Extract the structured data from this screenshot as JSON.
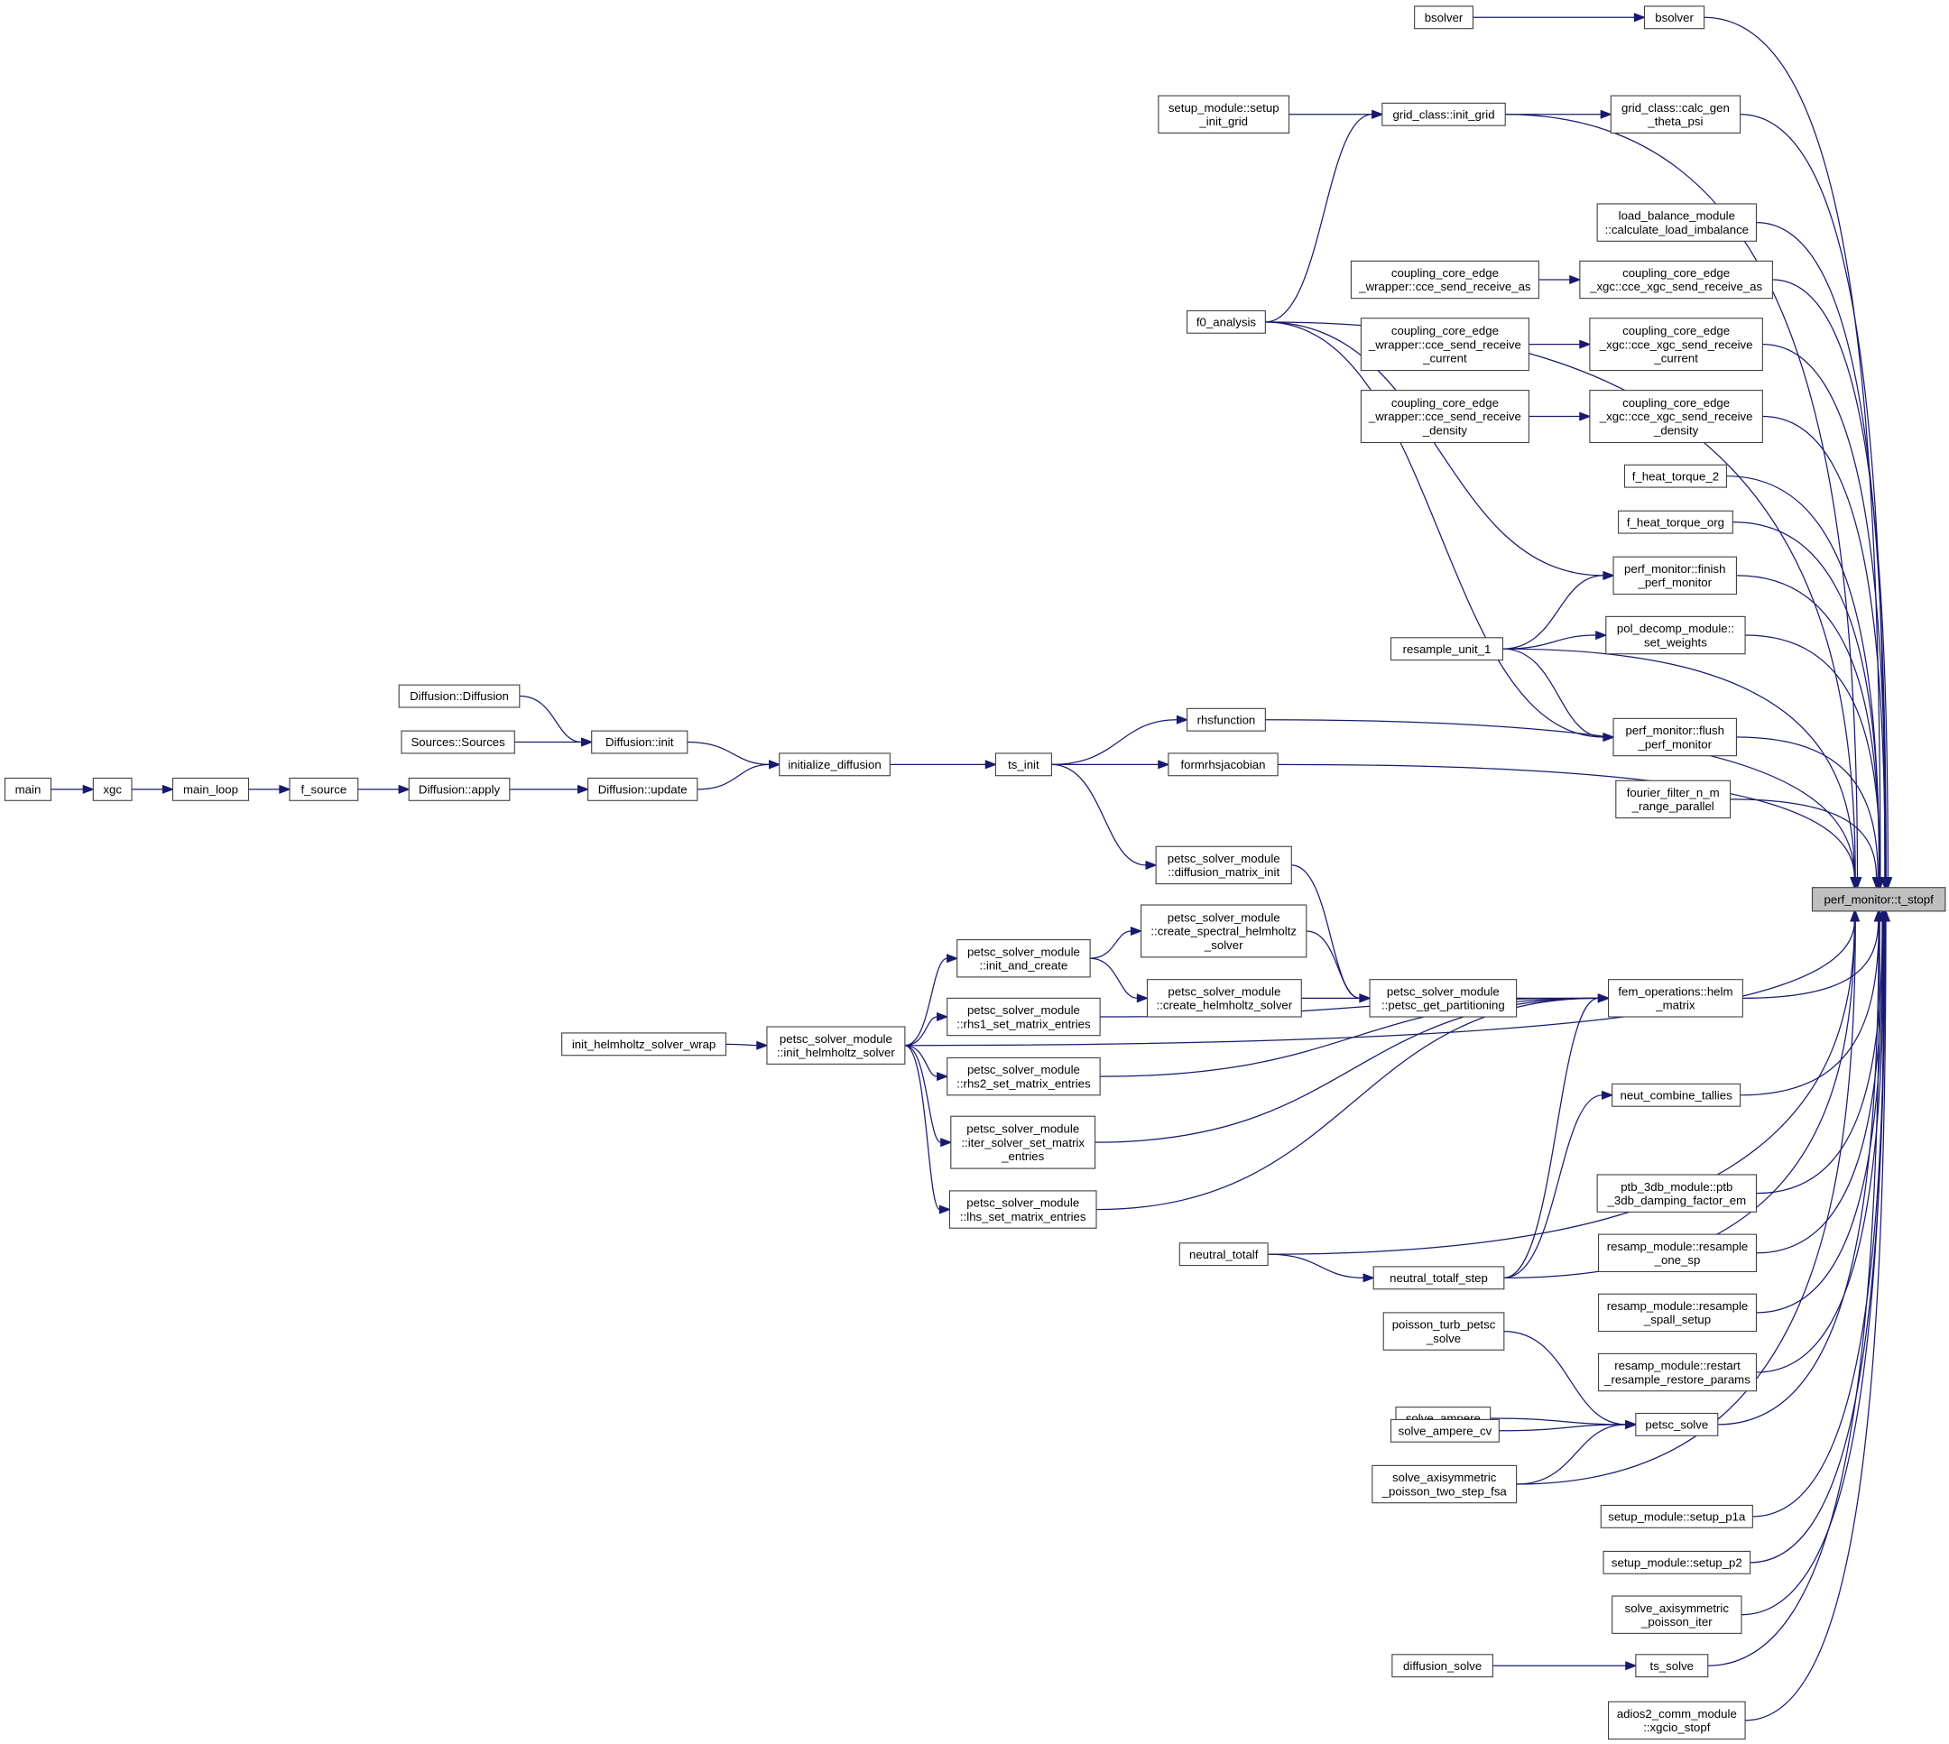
{
  "graph": {
    "edge_color": "#191970",
    "node_border_color": "#404040",
    "highlight_fill": "#bfbfbf",
    "nodes": [
      {
        "id": "bsolverL",
        "lines": [
          "bsolver"
        ]
      },
      {
        "id": "bsolverR",
        "lines": [
          "bsolver"
        ]
      },
      {
        "id": "setup_init_grid",
        "lines": [
          "setup_module::setup",
          "_init_grid"
        ]
      },
      {
        "id": "init_grid",
        "lines": [
          "grid_class::init_grid"
        ]
      },
      {
        "id": "calc_gen",
        "lines": [
          "grid_class::calc_gen",
          "_theta_psi"
        ]
      },
      {
        "id": "load_bal",
        "lines": [
          "load_balance_module",
          "::calculate_load_imbalance"
        ]
      },
      {
        "id": "wr_as",
        "lines": [
          "coupling_core_edge",
          "_wrapper::cce_send_receive_as"
        ]
      },
      {
        "id": "xgc_as",
        "lines": [
          "coupling_core_edge",
          "_xgc::cce_xgc_send_receive_as"
        ]
      },
      {
        "id": "f0",
        "lines": [
          "f0_analysis"
        ]
      },
      {
        "id": "wr_cur",
        "lines": [
          "coupling_core_edge",
          "_wrapper::cce_send_receive",
          "_current"
        ]
      },
      {
        "id": "xgc_cur",
        "lines": [
          "coupling_core_edge",
          "_xgc::cce_xgc_send_receive",
          "_current"
        ]
      },
      {
        "id": "wr_den",
        "lines": [
          "coupling_core_edge",
          "_wrapper::cce_send_receive",
          "_density"
        ]
      },
      {
        "id": "xgc_den",
        "lines": [
          "coupling_core_edge",
          "_xgc::cce_xgc_send_receive",
          "_density"
        ]
      },
      {
        "id": "fht2",
        "lines": [
          "f_heat_torque_2"
        ]
      },
      {
        "id": "fhto",
        "lines": [
          "f_heat_torque_org"
        ]
      },
      {
        "id": "finish",
        "lines": [
          "perf_monitor::finish",
          "_perf_monitor"
        ]
      },
      {
        "id": "setw",
        "lines": [
          "pol_decomp_module::",
          "set_weights"
        ]
      },
      {
        "id": "resamp1",
        "lines": [
          "resample_unit_1"
        ]
      },
      {
        "id": "diffdiff",
        "lines": [
          "Diffusion::Diffusion"
        ]
      },
      {
        "id": "rhsf",
        "lines": [
          "rhsfunction"
        ]
      },
      {
        "id": "sources",
        "lines": [
          "Sources::Sources"
        ]
      },
      {
        "id": "diffinit",
        "lines": [
          "Diffusion::init"
        ]
      },
      {
        "id": "flush",
        "lines": [
          "perf_monitor::flush",
          "_perf_monitor"
        ]
      },
      {
        "id": "initdiff",
        "lines": [
          "initialize_diffusion"
        ]
      },
      {
        "id": "tsinit",
        "lines": [
          "ts_init"
        ]
      },
      {
        "id": "formrhs",
        "lines": [
          "formrhsjacobian"
        ]
      },
      {
        "id": "fourier",
        "lines": [
          "fourier_filter_n_m",
          "_range_parallel"
        ]
      },
      {
        "id": "main",
        "lines": [
          "main"
        ]
      },
      {
        "id": "xgc",
        "lines": [
          "xgc"
        ]
      },
      {
        "id": "mainloop",
        "lines": [
          "main_loop"
        ]
      },
      {
        "id": "fsource",
        "lines": [
          "f_source"
        ]
      },
      {
        "id": "diffapply",
        "lines": [
          "Diffusion::apply"
        ]
      },
      {
        "id": "diffupdate",
        "lines": [
          "Diffusion::update"
        ]
      },
      {
        "id": "dmi",
        "lines": [
          "petsc_solver_module",
          "::diffusion_matrix_init"
        ]
      },
      {
        "id": "tstopf",
        "lines": [
          "perf_monitor::t_stopf"
        ],
        "highlighted": true
      },
      {
        "id": "spectral",
        "lines": [
          "petsc_solver_module",
          "::create_spectral_helmholtz",
          "_solver"
        ]
      },
      {
        "id": "initcreate",
        "lines": [
          "petsc_solver_module",
          "::init_and_create"
        ]
      },
      {
        "id": "createhelm",
        "lines": [
          "petsc_solver_module",
          "::create_helmholtz_solver"
        ]
      },
      {
        "id": "getpart",
        "lines": [
          "petsc_solver_module",
          "::petsc_get_partitioning"
        ]
      },
      {
        "id": "helm",
        "lines": [
          "fem_operations::helm",
          "_matrix"
        ]
      },
      {
        "id": "rhs1",
        "lines": [
          "petsc_solver_module",
          "::rhs1_set_matrix_entries"
        ]
      },
      {
        "id": "wrap",
        "lines": [
          "init_helmholtz_solver_wrap"
        ]
      },
      {
        "id": "inithelm",
        "lines": [
          "petsc_solver_module",
          "::init_helmholtz_solver"
        ]
      },
      {
        "id": "rhs2",
        "lines": [
          "petsc_solver_module",
          "::rhs2_set_matrix_entries"
        ]
      },
      {
        "id": "neutcomb",
        "lines": [
          "neut_combine_tallies"
        ]
      },
      {
        "id": "iter",
        "lines": [
          "petsc_solver_module",
          "::iter_solver_set_matrix",
          "_entries"
        ]
      },
      {
        "id": "ptb",
        "lines": [
          "ptb_3db_module::ptb",
          "_3db_damping_factor_em"
        ]
      },
      {
        "id": "lhs",
        "lines": [
          "petsc_solver_module",
          "::lhs_set_matrix_entries"
        ]
      },
      {
        "id": "onesp",
        "lines": [
          "resamp_module::resample",
          "_one_sp"
        ]
      },
      {
        "id": "ntotal",
        "lines": [
          "neutral_totalf"
        ]
      },
      {
        "id": "nstep",
        "lines": [
          "neutral_totalf_step"
        ]
      },
      {
        "id": "spall",
        "lines": [
          "resamp_module::resample",
          "_spall_setup"
        ]
      },
      {
        "id": "poisturb",
        "lines": [
          "poisson_turb_petsc",
          "_solve"
        ]
      },
      {
        "id": "restart",
        "lines": [
          "resamp_module::restart",
          "_resample_restore_params"
        ]
      },
      {
        "id": "ampere",
        "lines": [
          "solve_ampere"
        ]
      },
      {
        "id": "petscsolve",
        "lines": [
          "petsc_solve"
        ]
      },
      {
        "id": "amperecv",
        "lines": [
          "solve_ampere_cv"
        ]
      },
      {
        "id": "twostep",
        "lines": [
          "solve_axisymmetric",
          "_poisson_two_step_fsa"
        ]
      },
      {
        "id": "p1a",
        "lines": [
          "setup_module::setup_p1a"
        ]
      },
      {
        "id": "p2",
        "lines": [
          "setup_module::setup_p2"
        ]
      },
      {
        "id": "axiiter",
        "lines": [
          "solve_axisymmetric",
          "_poisson_iter"
        ]
      },
      {
        "id": "diffsolve",
        "lines": [
          "diffusion_solve"
        ]
      },
      {
        "id": "tssolve",
        "lines": [
          "ts_solve"
        ]
      },
      {
        "id": "adios",
        "lines": [
          "adios2_comm_module",
          "::xgcio_stopf"
        ]
      }
    ],
    "edges": [
      [
        "bsolverL",
        "bsolverR"
      ],
      [
        "bsolverR",
        "tstopf"
      ],
      [
        "setup_init_grid",
        "init_grid"
      ],
      [
        "init_grid",
        "calc_gen"
      ],
      [
        "calc_gen",
        "tstopf"
      ],
      [
        "init_grid",
        "tstopf"
      ],
      [
        "f0",
        "init_grid"
      ],
      [
        "f0",
        "tstopf"
      ],
      [
        "load_bal",
        "tstopf"
      ],
      [
        "wr_as",
        "xgc_as"
      ],
      [
        "xgc_as",
        "tstopf"
      ],
      [
        "wr_cur",
        "xgc_cur"
      ],
      [
        "xgc_cur",
        "tstopf"
      ],
      [
        "wr_den",
        "xgc_den"
      ],
      [
        "xgc_den",
        "tstopf"
      ],
      [
        "fht2",
        "tstopf"
      ],
      [
        "fhto",
        "tstopf"
      ],
      [
        "f0",
        "finish"
      ],
      [
        "finish",
        "tstopf"
      ],
      [
        "resamp1",
        "finish"
      ],
      [
        "resamp1",
        "setw"
      ],
      [
        "setw",
        "tstopf"
      ],
      [
        "resamp1",
        "tstopf"
      ],
      [
        "f0",
        "flush"
      ],
      [
        "resamp1",
        "flush"
      ],
      [
        "flush",
        "tstopf"
      ],
      [
        "fourier",
        "tstopf"
      ],
      [
        "diffdiff",
        "diffinit"
      ],
      [
        "sources",
        "diffinit"
      ],
      [
        "diffinit",
        "initdiff"
      ],
      [
        "diffupdate",
        "initdiff"
      ],
      [
        "main",
        "xgc"
      ],
      [
        "xgc",
        "mainloop"
      ],
      [
        "mainloop",
        "fsource"
      ],
      [
        "fsource",
        "diffapply"
      ],
      [
        "diffapply",
        "diffupdate"
      ],
      [
        "initdiff",
        "tsinit"
      ],
      [
        "tsinit",
        "rhsf"
      ],
      [
        "tsinit",
        "formrhs"
      ],
      [
        "rhsf",
        "tstopf"
      ],
      [
        "formrhs",
        "tstopf"
      ],
      [
        "tsinit",
        "dmi"
      ],
      [
        "dmi",
        "getpart"
      ],
      [
        "spectral",
        "getpart"
      ],
      [
        "createhelm",
        "getpart"
      ],
      [
        "initcreate",
        "spectral"
      ],
      [
        "initcreate",
        "createhelm"
      ],
      [
        "getpart",
        "helm"
      ],
      [
        "helm",
        "tstopf"
      ],
      [
        "inithelm",
        "initcreate"
      ],
      [
        "inithelm",
        "rhs1"
      ],
      [
        "inithelm",
        "rhs2"
      ],
      [
        "inithelm",
        "iter"
      ],
      [
        "inithelm",
        "lhs"
      ],
      [
        "inithelm",
        "tstopf"
      ],
      [
        "wrap",
        "inithelm"
      ],
      [
        "rhs1",
        "helm"
      ],
      [
        "rhs2",
        "helm"
      ],
      [
        "iter",
        "helm"
      ],
      [
        "lhs",
        "helm"
      ],
      [
        "ntotal",
        "nstep"
      ],
      [
        "ntotal",
        "tstopf"
      ],
      [
        "nstep",
        "neutcomb"
      ],
      [
        "nstep",
        "helm"
      ],
      [
        "nstep",
        "tstopf"
      ],
      [
        "neutcomb",
        "tstopf"
      ],
      [
        "ptb",
        "tstopf"
      ],
      [
        "onesp",
        "tstopf"
      ],
      [
        "spall",
        "tstopf"
      ],
      [
        "restart",
        "tstopf"
      ],
      [
        "poisturb",
        "petscsolve"
      ],
      [
        "ampere",
        "petscsolve"
      ],
      [
        "amperecv",
        "petscsolve"
      ],
      [
        "twostep",
        "petscsolve"
      ],
      [
        "twostep",
        "tstopf"
      ],
      [
        "petscsolve",
        "tstopf"
      ],
      [
        "p1a",
        "tstopf"
      ],
      [
        "p2",
        "tstopf"
      ],
      [
        "axiiter",
        "tstopf"
      ],
      [
        "diffsolve",
        "tssolve"
      ],
      [
        "tssolve",
        "tstopf"
      ],
      [
        "adios",
        "tstopf"
      ]
    ]
  }
}
